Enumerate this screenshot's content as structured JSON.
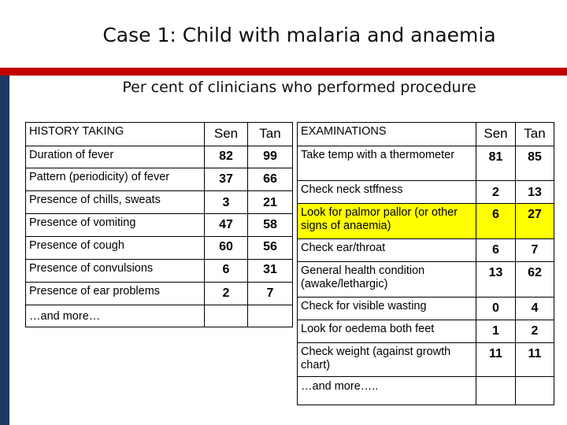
{
  "title": "Case 1: Child with malaria and anaemia",
  "subtitle": "Per cent of clinicians who performed procedure",
  "history": {
    "header": {
      "label": "HISTORY TAKING",
      "sen": "Sen",
      "tan": "Tan"
    },
    "rows": [
      {
        "label": "Duration of fever",
        "sen": "82",
        "tan": "99"
      },
      {
        "label": "Pattern (periodicity) of fever",
        "sen": "37",
        "tan": "66"
      },
      {
        "label": "Presence of chills, sweats",
        "sen": "3",
        "tan": "21"
      },
      {
        "label": "Presence of vomiting",
        "sen": "47",
        "tan": "58"
      },
      {
        "label": "Presence of cough",
        "sen": "60",
        "tan": "56"
      },
      {
        "label": "Presence of convulsions",
        "sen": "6",
        "tan": "31"
      },
      {
        "label": "Presence of ear problems",
        "sen": "2",
        "tan": "7"
      }
    ],
    "more": "…and more…"
  },
  "exams": {
    "header": {
      "label": "EXAMINATIONS",
      "sen": "Sen",
      "tan": "Tan"
    },
    "rows": [
      {
        "label": "Take temp with a thermometer",
        "sen": "81",
        "tan": "85"
      },
      {
        "label": "Check neck stffness",
        "sen": "2",
        "tan": "13"
      },
      {
        "label": "Look for palmor pallor (or other signs of anaemia)",
        "sen": "6",
        "tan": "27",
        "highlight": true
      },
      {
        "label": "Check ear/throat",
        "sen": "6",
        "tan": "7"
      },
      {
        "label": "General health condition (awake/lethargic)",
        "sen": "13",
        "tan": "62"
      },
      {
        "label": "Check for visible wasting",
        "sen": "0",
        "tan": "4"
      },
      {
        "label": "Look for oedema both feet",
        "sen": "1",
        "tan": "2"
      },
      {
        "label": "Check weight (against growth chart)",
        "sen": "11",
        "tan": "11"
      }
    ],
    "more": "…and more….."
  },
  "colors": {
    "accent_red": "#c00000",
    "accent_navy": "#1f3864",
    "highlight": "#ffff00"
  }
}
